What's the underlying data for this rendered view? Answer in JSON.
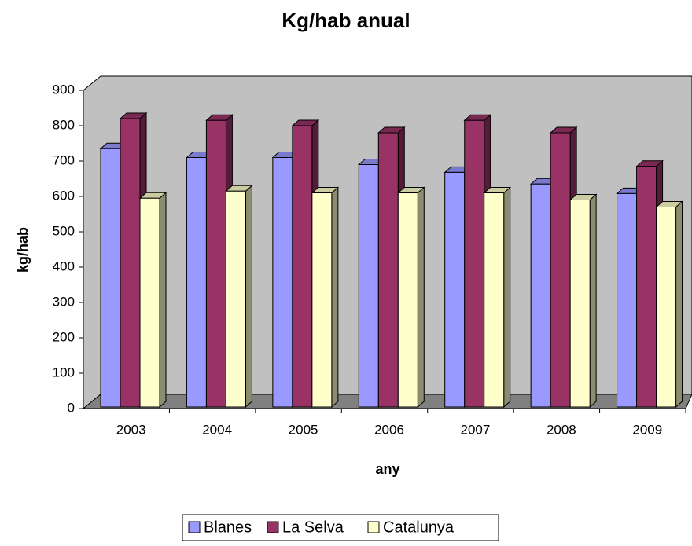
{
  "chart_data": {
    "type": "bar3d",
    "title": "Kg/hab anual",
    "x_label": "any",
    "y_label": "kg/hab",
    "categories": [
      "2003",
      "2004",
      "2005",
      "2006",
      "2007",
      "2008",
      "2009"
    ],
    "series": [
      {
        "name": "Blanes",
        "color": "#9999ff",
        "values": [
          735,
          710,
          710,
          690,
          668,
          635,
          608
        ]
      },
      {
        "name": "La Selva",
        "color": "#993366",
        "values": [
          820,
          815,
          800,
          780,
          815,
          780,
          685
        ]
      },
      {
        "name": "Catalunya",
        "color": "#ffffcc",
        "values": [
          595,
          615,
          610,
          610,
          610,
          590,
          570
        ]
      }
    ],
    "ylim": [
      0,
      900
    ],
    "yticks": [
      0,
      100,
      200,
      300,
      400,
      500,
      600,
      700,
      800,
      900
    ],
    "legend": "bottom"
  }
}
